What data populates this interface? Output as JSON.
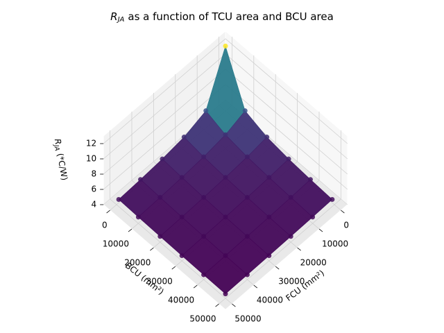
{
  "chart_data": {
    "type": "scatter3d",
    "title_symbol": "R",
    "title_subscript": "JA",
    "title_text": "as a function of TCU area and BCU area",
    "xlabel": "FCU (mm²)",
    "ylabel": "BCU (mm²)",
    "zlabel_symbol": "R",
    "zlabel_subscript": "JA",
    "zlabel_text": "(*C/W)",
    "x": [
      1000,
      10000,
      20000,
      30000,
      40000,
      50000
    ],
    "y": [
      1000,
      10000,
      20000,
      30000,
      40000,
      50000
    ],
    "z": [
      [
        13.0,
        6.73,
        5.74,
        5.32,
        5.09,
        4.93
      ],
      [
        6.73,
        5.8,
        5.35,
        5.11,
        4.95,
        4.83
      ],
      [
        5.74,
        5.35,
        5.11,
        4.95,
        4.83,
        4.75
      ],
      [
        5.32,
        5.11,
        4.95,
        4.83,
        4.75,
        4.68
      ],
      [
        5.09,
        4.95,
        4.83,
        4.75,
        4.68,
        4.63
      ],
      [
        4.93,
        4.83,
        4.75,
        4.68,
        4.63,
        4.58
      ]
    ],
    "xlim": [
      0,
      50000
    ],
    "ylim": [
      0,
      50000
    ],
    "zlim": [
      4,
      13
    ],
    "xticks": [
      0,
      10000,
      20000,
      30000,
      40000,
      50000
    ],
    "yticks": [
      0,
      10000,
      20000,
      30000,
      40000,
      50000
    ],
    "zticks": [
      4,
      6,
      8,
      10,
      12
    ],
    "colormap": "viridis",
    "grid": true
  }
}
